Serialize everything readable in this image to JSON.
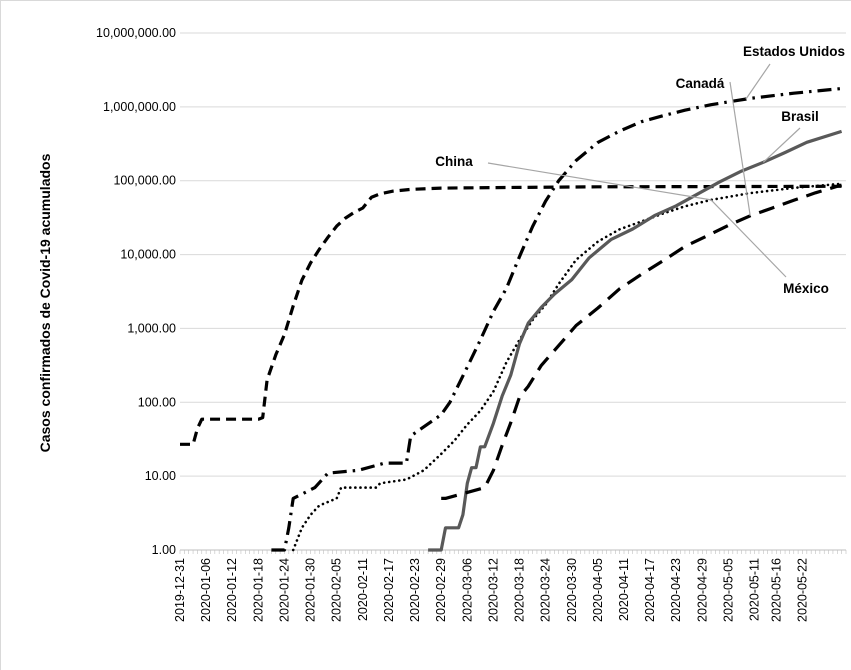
{
  "chart_data": {
    "type": "line",
    "title": "",
    "xlabel": "",
    "ylabel": "Casos confirmados  de Covid-19 acumulados",
    "y_scale": "log",
    "ylim": [
      1,
      10000000
    ],
    "grid": "horizontal",
    "legend": "none",
    "y_tick_labels": [
      "1.00",
      "10.00",
      "100.00",
      "1,000.00",
      "10,000.00",
      "100,000.00",
      "1,000,000.00",
      "10,000,000.00"
    ],
    "x_tick_labels": [
      "2019-12-31",
      "2020-01-06",
      "2020-01-12",
      "2020-01-18",
      "2020-01-24",
      "2020-01-30",
      "2020-02-05",
      "2020-02-11",
      "2020-02-17",
      "2020-02-23",
      "2020-02-29",
      "2020-03-06",
      "2020-03-12",
      "2020-03-18",
      "2020-03-24",
      "2020-03-30",
      "2020-04-05",
      "2020-04-11",
      "2020-04-17",
      "2020-04-23",
      "2020-04-29",
      "2020-05-05",
      "2020-05-11",
      "2020-05-16",
      "2020-05-22"
    ],
    "x_range": [
      "2019-12-31",
      "2020-05-31"
    ],
    "series": [
      {
        "name": "China",
        "color": "#000000",
        "style": "dashed",
        "points": [
          [
            "2019-12-31",
            27
          ],
          [
            "2020-01-03",
            27
          ],
          [
            "2020-01-04",
            44
          ],
          [
            "2020-01-05",
            59
          ],
          [
            "2020-01-18",
            59
          ],
          [
            "2020-01-19",
            62
          ],
          [
            "2020-01-20",
            201
          ],
          [
            "2020-01-22",
            440
          ],
          [
            "2020-01-24",
            830
          ],
          [
            "2020-01-26",
            2019
          ],
          [
            "2020-01-28",
            4515
          ],
          [
            "2020-01-30",
            7711
          ],
          [
            "2020-02-01",
            11791
          ],
          [
            "2020-02-03",
            17205
          ],
          [
            "2020-02-05",
            24324
          ],
          [
            "2020-02-07",
            31161
          ],
          [
            "2020-02-09",
            37198
          ],
          [
            "2020-02-11",
            42708
          ],
          [
            "2020-02-13",
            59804
          ],
          [
            "2020-02-15",
            66492
          ],
          [
            "2020-02-18",
            72436
          ],
          [
            "2020-02-22",
            76392
          ],
          [
            "2020-02-29",
            79356
          ],
          [
            "2020-03-15",
            80860
          ],
          [
            "2020-04-05",
            82642
          ],
          [
            "2020-05-31",
            84128
          ]
        ]
      },
      {
        "name": "Estados Unidos",
        "color": "#000000",
        "style": "dash-dot",
        "points": [
          [
            "2020-01-21",
            1
          ],
          [
            "2020-01-24",
            1
          ],
          [
            "2020-01-25",
            2
          ],
          [
            "2020-01-26",
            5
          ],
          [
            "2020-01-31",
            7
          ],
          [
            "2020-02-03",
            11
          ],
          [
            "2020-02-10",
            12
          ],
          [
            "2020-02-16",
            15
          ],
          [
            "2020-02-21",
            15
          ],
          [
            "2020-02-22",
            35
          ],
          [
            "2020-02-29",
            68
          ],
          [
            "2020-03-02",
            100
          ],
          [
            "2020-03-06",
            300
          ],
          [
            "2020-03-09",
            700
          ],
          [
            "2020-03-12",
            1700
          ],
          [
            "2020-03-15",
            3500
          ],
          [
            "2020-03-18",
            9400
          ],
          [
            "2020-03-21",
            24000
          ],
          [
            "2020-03-24",
            53000
          ],
          [
            "2020-03-27",
            100000
          ],
          [
            "2020-03-31",
            188000
          ],
          [
            "2020-04-05",
            330000
          ],
          [
            "2020-04-10",
            470000
          ],
          [
            "2020-04-15",
            630000
          ],
          [
            "2020-04-20",
            760000
          ],
          [
            "2020-04-25",
            900000
          ],
          [
            "2020-05-01",
            1070000
          ],
          [
            "2020-05-10",
            1300000
          ],
          [
            "2020-05-20",
            1530000
          ],
          [
            "2020-05-31",
            1770000
          ]
        ]
      },
      {
        "name": "Canadá",
        "color": "#000000",
        "style": "dotted",
        "points": [
          [
            "2020-01-26",
            1
          ],
          [
            "2020-01-28",
            2
          ],
          [
            "2020-01-30",
            3
          ],
          [
            "2020-02-01",
            4
          ],
          [
            "2020-02-05",
            5
          ],
          [
            "2020-02-06",
            7
          ],
          [
            "2020-02-14",
            7
          ],
          [
            "2020-02-15",
            8
          ],
          [
            "2020-02-21",
            9
          ],
          [
            "2020-02-25",
            12
          ],
          [
            "2020-02-29",
            20
          ],
          [
            "2020-03-03",
            30
          ],
          [
            "2020-03-06",
            50
          ],
          [
            "2020-03-09",
            77
          ],
          [
            "2020-03-12",
            140
          ],
          [
            "2020-03-15",
            350
          ],
          [
            "2020-03-18",
            700
          ],
          [
            "2020-03-21",
            1300
          ],
          [
            "2020-03-24",
            2100
          ],
          [
            "2020-03-27",
            4000
          ],
          [
            "2020-03-31",
            8500
          ],
          [
            "2020-04-05",
            15000
          ],
          [
            "2020-04-10",
            22000
          ],
          [
            "2020-04-15",
            28000
          ],
          [
            "2020-04-20",
            36000
          ],
          [
            "2020-04-25",
            45000
          ],
          [
            "2020-05-01",
            55000
          ],
          [
            "2020-05-10",
            68000
          ],
          [
            "2020-05-20",
            80000
          ],
          [
            "2020-05-31",
            91000
          ]
        ]
      },
      {
        "name": "Brasil",
        "color": "#595959",
        "style": "solid",
        "points": [
          [
            "2020-02-26",
            1
          ],
          [
            "2020-02-29",
            1
          ],
          [
            "2020-03-01",
            2
          ],
          [
            "2020-03-04",
            2
          ],
          [
            "2020-03-05",
            3
          ],
          [
            "2020-03-06",
            8
          ],
          [
            "2020-03-07",
            13
          ],
          [
            "2020-03-08",
            13
          ],
          [
            "2020-03-09",
            25
          ],
          [
            "2020-03-10",
            25
          ],
          [
            "2020-03-12",
            52
          ],
          [
            "2020-03-14",
            121
          ],
          [
            "2020-03-16",
            234
          ],
          [
            "2020-03-18",
            621
          ],
          [
            "2020-03-20",
            1178
          ],
          [
            "2020-03-23",
            1924
          ],
          [
            "2020-03-26",
            2915
          ],
          [
            "2020-03-30",
            4579
          ],
          [
            "2020-04-03",
            9056
          ],
          [
            "2020-04-08",
            15927
          ],
          [
            "2020-04-13",
            22169
          ],
          [
            "2020-04-18",
            33682
          ],
          [
            "2020-04-23",
            45757
          ],
          [
            "2020-04-28",
            66501
          ],
          [
            "2020-05-03",
            96559
          ],
          [
            "2020-05-08",
            135106
          ],
          [
            "2020-05-13",
            177589
          ],
          [
            "2020-05-18",
            241080
          ],
          [
            "2020-05-23",
            330890
          ],
          [
            "2020-05-31",
            465166
          ]
        ]
      },
      {
        "name": "México",
        "color": "#000000",
        "style": "long-dash",
        "points": [
          [
            "2020-02-29",
            5
          ],
          [
            "2020-03-01",
            5
          ],
          [
            "2020-03-10",
            7
          ],
          [
            "2020-03-12",
            12
          ],
          [
            "2020-03-14",
            26
          ],
          [
            "2020-03-16",
            53
          ],
          [
            "2020-03-18",
            118
          ],
          [
            "2020-03-20",
            164
          ],
          [
            "2020-03-23",
            316
          ],
          [
            "2020-03-27",
            585
          ],
          [
            "2020-03-31",
            1094
          ],
          [
            "2020-04-05",
            1890
          ],
          [
            "2020-04-10",
            3441
          ],
          [
            "2020-04-15",
            5399
          ],
          [
            "2020-04-20",
            8261
          ],
          [
            "2020-04-25",
            12872
          ],
          [
            "2020-04-30",
            17799
          ],
          [
            "2020-05-05",
            24905
          ],
          [
            "2020-05-10",
            33460
          ],
          [
            "2020-05-15",
            42595
          ],
          [
            "2020-05-20",
            54346
          ],
          [
            "2020-05-25",
            68620
          ],
          [
            "2020-05-31",
            87512
          ]
        ]
      }
    ],
    "annotations": [
      {
        "text": "Estados Unidos",
        "series": "Estados Unidos"
      },
      {
        "text": "Canadá",
        "series": "México"
      },
      {
        "text": "Brasil",
        "series": "Brasil"
      },
      {
        "text": "China",
        "series": "Canadá"
      },
      {
        "text": "México",
        "series": "Canadá"
      }
    ]
  }
}
